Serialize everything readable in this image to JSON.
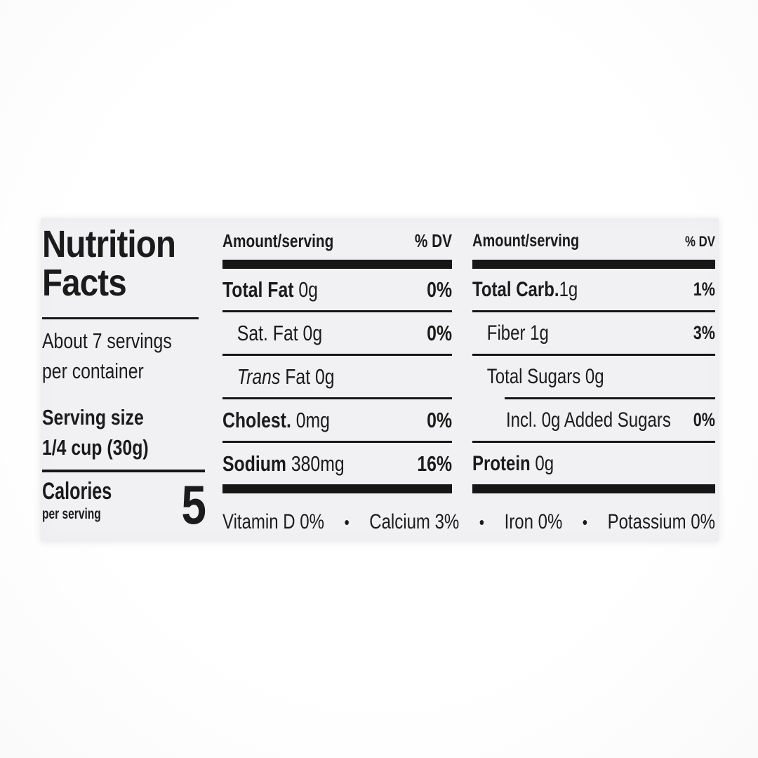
{
  "colors": {
    "ink": "#161616",
    "panel_bg": "#f1f1f4",
    "page_bg": "#fdfdfe"
  },
  "label": {
    "title_line1": "Nutrition",
    "title_line2": "Facts",
    "servings_line1": "About 7 servings",
    "servings_line2": "per container",
    "serving_size_label": "Serving size",
    "serving_size_value": "1/4 cup (30g)",
    "calories_label": "Calories",
    "calories_sub": "per serving",
    "calories_value": "5",
    "col_header_amount": "Amount/serving",
    "col_header_dv": "% DV",
    "bullet": "•",
    "columns": [
      {
        "rows": [
          {
            "indent": 0,
            "parts": [
              {
                "t": "Total Fat",
                "b": true
              },
              {
                "t": " 0g"
              }
            ],
            "dv": "0%"
          },
          {
            "indent": 1,
            "parts": [
              {
                "t": "Sat. Fat 0g"
              }
            ],
            "dv": "0%"
          },
          {
            "indent": 1,
            "parts": [
              {
                "t": "Trans",
                "i": true
              },
              {
                "t": " Fat 0g"
              }
            ],
            "dv": ""
          },
          {
            "indent": 0,
            "parts": [
              {
                "t": "Cholest.",
                "b": true
              },
              {
                "t": " 0mg"
              }
            ],
            "dv": "0%"
          },
          {
            "indent": 0,
            "parts": [
              {
                "t": "Sodium",
                "b": true
              },
              {
                "t": " 380mg"
              }
            ],
            "dv": "16%"
          }
        ]
      },
      {
        "rows": [
          {
            "indent": 0,
            "parts": [
              {
                "t": "Total Carb.",
                "b": true
              },
              {
                "t": "1g"
              }
            ],
            "dv": "1%"
          },
          {
            "indent": 1,
            "parts": [
              {
                "t": "Fiber 1g"
              }
            ],
            "dv": "3%"
          },
          {
            "indent": 1,
            "parts": [
              {
                "t": "Total Sugars 0g"
              }
            ],
            "dv": ""
          },
          {
            "indent": 2,
            "parts": [
              {
                "t": "Incl. 0g Added Sugars"
              }
            ],
            "dv": "0%",
            "rule_above_indent": true
          },
          {
            "indent": 0,
            "parts": [
              {
                "t": "Protein",
                "b": true
              },
              {
                "t": " 0g"
              }
            ],
            "dv": ""
          }
        ]
      }
    ],
    "micronutrients": [
      {
        "name": "Vitamin D",
        "value": "0%"
      },
      {
        "name": "Calcium",
        "value": "3%"
      },
      {
        "name": "Iron",
        "value": "0%"
      },
      {
        "name": "Potassium",
        "value": "0%"
      }
    ]
  }
}
